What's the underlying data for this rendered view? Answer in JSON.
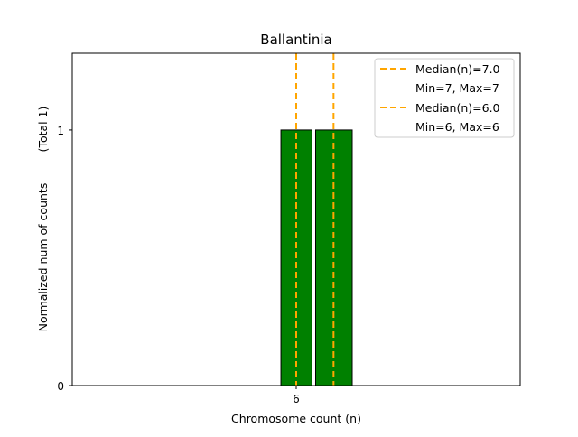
{
  "chart_data": {
    "type": "bar",
    "title": "Ballantinia",
    "xlabel": "Chromosome count (n)",
    "ylabel": "Normalized num of counts",
    "ylabel_note": "(Total 1)",
    "xlim": [
      0,
      12
    ],
    "ylim": [
      0,
      1.3
    ],
    "xticks": [
      {
        "value": 6,
        "label": "6"
      }
    ],
    "yticks": [
      {
        "value": 0,
        "label": "0"
      },
      {
        "value": 1,
        "label": "1"
      }
    ],
    "bars": [
      {
        "left": 5.59,
        "right": 6.42,
        "value": 1
      },
      {
        "left": 6.52,
        "right": 7.5,
        "value": 1
      }
    ],
    "median_lines": [
      7.0,
      6.0
    ],
    "bar_color": "#008000",
    "median_color": "#FFA500",
    "legend": {
      "placement": "top-right",
      "entries": [
        {
          "label": "Median(n)=7.0",
          "sub": "Min=7, Max=7"
        },
        {
          "label": "Median(n)=6.0",
          "sub": "Min=6, Max=6"
        }
      ]
    }
  }
}
